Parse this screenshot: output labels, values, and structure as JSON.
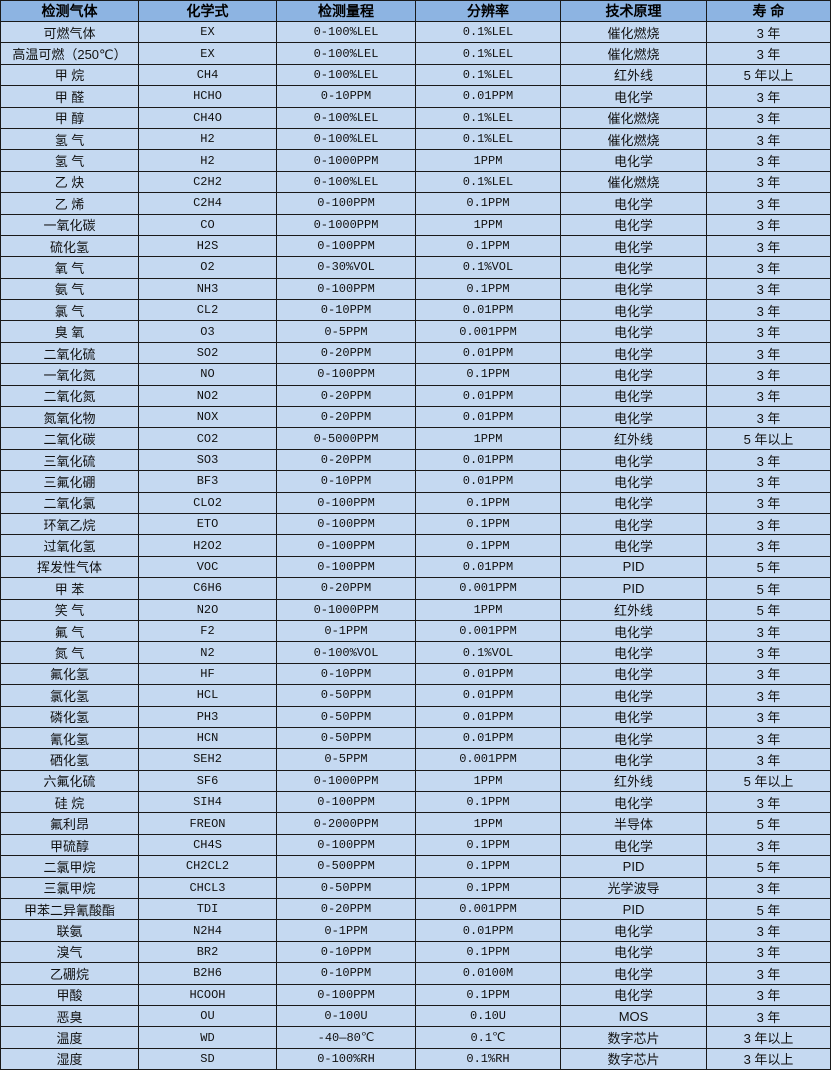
{
  "colors": {
    "header_bg": "#8db4e2",
    "row_bg": "#c5d9f1",
    "border": "#1a1a1a"
  },
  "table": {
    "headers": [
      "检测气体",
      "化学式",
      "检测量程",
      "分辨率",
      "技术原理",
      "寿 命"
    ],
    "rows": [
      [
        "可燃气体",
        "EX",
        "0-100%LEL",
        "0.1%LEL",
        "催化燃烧",
        "3 年"
      ],
      [
        "高温可燃（250℃）",
        "EX",
        "0-100%LEL",
        "0.1%LEL",
        "催化燃烧",
        "3 年"
      ],
      [
        "甲 烷",
        "CH4",
        "0-100%LEL",
        "0.1%LEL",
        "红外线",
        "5 年以上"
      ],
      [
        "甲 醛",
        "HCHO",
        "0-10PPM",
        "0.01PPM",
        "电化学",
        "3 年"
      ],
      [
        "甲 醇",
        "CH4O",
        "0-100%LEL",
        "0.1%LEL",
        "催化燃烧",
        "3 年"
      ],
      [
        "氢 气",
        "H2",
        "0-100%LEL",
        "0.1%LEL",
        "催化燃烧",
        "3 年"
      ],
      [
        "氢 气",
        "H2",
        "0-1000PPM",
        "1PPM",
        "电化学",
        "3 年"
      ],
      [
        "乙 炔",
        "C2H2",
        "0-100%LEL",
        "0.1%LEL",
        "催化燃烧",
        "3 年"
      ],
      [
        "乙 烯",
        "C2H4",
        "0-100PPM",
        "0.1PPM",
        "电化学",
        "3 年"
      ],
      [
        "一氧化碳",
        "CO",
        "0-1000PPM",
        "1PPM",
        "电化学",
        "3 年"
      ],
      [
        "硫化氢",
        "H2S",
        "0-100PPM",
        "0.1PPM",
        "电化学",
        "3 年"
      ],
      [
        "氧 气",
        "O2",
        "0-30%VOL",
        "0.1%VOL",
        "电化学",
        "3 年"
      ],
      [
        "氨 气",
        "NH3",
        "0-100PPM",
        "0.1PPM",
        "电化学",
        "3 年"
      ],
      [
        "氯 气",
        "CL2",
        "0-10PPM",
        "0.01PPM",
        "电化学",
        "3 年"
      ],
      [
        "臭 氧",
        "O3",
        "0-5PPM",
        "0.001PPM",
        "电化学",
        "3 年"
      ],
      [
        "二氧化硫",
        "SO2",
        "0-20PPM",
        "0.01PPM",
        "电化学",
        "3 年"
      ],
      [
        "一氧化氮",
        "NO",
        "0-100PPM",
        "0.1PPM",
        "电化学",
        "3 年"
      ],
      [
        "二氧化氮",
        "NO2",
        "0-20PPM",
        "0.01PPM",
        "电化学",
        "3 年"
      ],
      [
        "氮氧化物",
        "NOX",
        "0-20PPM",
        "0.01PPM",
        "电化学",
        "3 年"
      ],
      [
        "二氧化碳",
        "CO2",
        "0-5000PPM",
        "1PPM",
        "红外线",
        "5 年以上"
      ],
      [
        "三氧化硫",
        "SO3",
        "0-20PPM",
        "0.01PPM",
        "电化学",
        "3 年"
      ],
      [
        "三氟化硼",
        "BF3",
        "0-10PPM",
        "0.01PPM",
        "电化学",
        "3 年"
      ],
      [
        "二氧化氯",
        "CLO2",
        "0-100PPM",
        "0.1PPM",
        "电化学",
        "3 年"
      ],
      [
        "环氧乙烷",
        "ETO",
        "0-100PPM",
        "0.1PPM",
        "电化学",
        "3 年"
      ],
      [
        "过氧化氢",
        "H2O2",
        "0-100PPM",
        "0.1PPM",
        "电化学",
        "3 年"
      ],
      [
        "挥发性气体",
        "VOC",
        "0-100PPM",
        "0.01PPM",
        "PID",
        "5 年"
      ],
      [
        "甲 苯",
        "C6H6",
        "0-20PPM",
        "0.001PPM",
        "PID",
        "5 年"
      ],
      [
        "笑 气",
        "N2O",
        "0-1000PPM",
        "1PPM",
        "红外线",
        "5 年"
      ],
      [
        "氟 气",
        "F2",
        "0-1PPM",
        "0.001PPM",
        "电化学",
        "3 年"
      ],
      [
        "氮 气",
        "N2",
        "0-100%VOL",
        "0.1%VOL",
        "电化学",
        "3 年"
      ],
      [
        "氟化氢",
        "HF",
        "0-10PPM",
        "0.01PPM",
        "电化学",
        "3 年"
      ],
      [
        "氯化氢",
        "HCL",
        "0-50PPM",
        "0.01PPM",
        "电化学",
        "3 年"
      ],
      [
        "磷化氢",
        "PH3",
        "0-50PPM",
        "0.01PPM",
        "电化学",
        "3 年"
      ],
      [
        "氰化氢",
        "HCN",
        "0-50PPM",
        "0.01PPM",
        "电化学",
        "3 年"
      ],
      [
        "硒化氢",
        "SEH2",
        "0-5PPM",
        "0.001PPM",
        "电化学",
        "3 年"
      ],
      [
        "六氟化硫",
        "SF6",
        "0-1000PPM",
        "1PPM",
        "红外线",
        "5 年以上"
      ],
      [
        "硅 烷",
        "SIH4",
        "0-100PPM",
        "0.1PPM",
        "电化学",
        "3 年"
      ],
      [
        "氟利昂",
        "FREON",
        "0-2000PPM",
        "1PPM",
        "半导体",
        "5 年"
      ],
      [
        "甲硫醇",
        "CH4S",
        "0-100PPM",
        "0.1PPM",
        "电化学",
        "3 年"
      ],
      [
        "二氯甲烷",
        "CH2CL2",
        "0-500PPM",
        "0.1PPM",
        "PID",
        "5 年"
      ],
      [
        "三氯甲烷",
        "CHCL3",
        "0-50PPM",
        "0.1PPM",
        "光学波导",
        "3 年"
      ],
      [
        "甲苯二异氰酸酯",
        "TDI",
        "0-20PPM",
        "0.001PPM",
        "PID",
        "5 年"
      ],
      [
        "联氨",
        "N2H4",
        "0-1PPM",
        "0.01PPM",
        "电化学",
        "3 年"
      ],
      [
        "溴气",
        "BR2",
        "0-10PPM",
        "0.1PPM",
        "电化学",
        "3 年"
      ],
      [
        "乙硼烷",
        "B2H6",
        "0-10PPM",
        "0.0100M",
        "电化学",
        "3 年"
      ],
      [
        "甲酸",
        "HCOOH",
        "0-100PPM",
        "0.1PPM",
        "电化学",
        "3 年"
      ],
      [
        "恶臭",
        "OU",
        "0-100U",
        "0.10U",
        "MOS",
        "3 年"
      ],
      [
        "温度",
        "WD",
        "-40—80℃",
        "0.1℃",
        "数字芯片",
        "3 年以上"
      ],
      [
        "湿度",
        "SD",
        "0-100%RH",
        "0.1%RH",
        "数字芯片",
        "3 年以上"
      ]
    ]
  }
}
